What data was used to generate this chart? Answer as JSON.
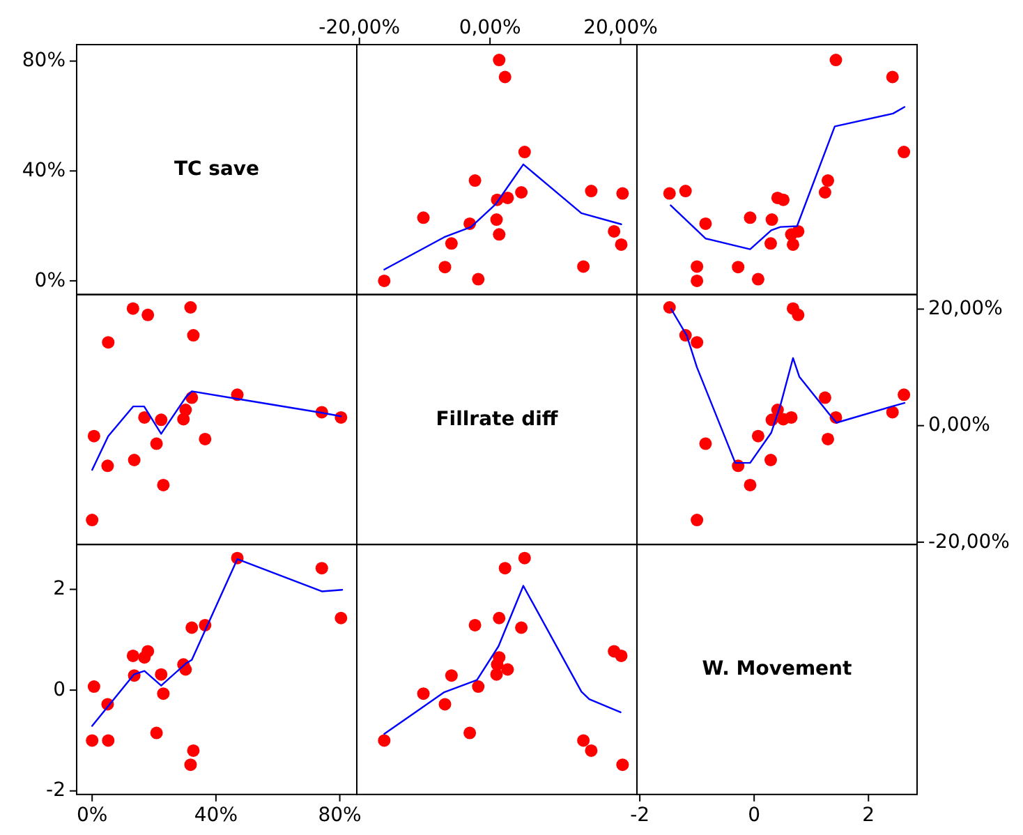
{
  "chart_data": [
    {
      "type": "scatter",
      "title": "TC save",
      "xlim": [
        -5,
        85.5
      ],
      "ylim": [
        -5,
        86
      ],
      "yticks": [
        {
          "value": 0,
          "label": "0%"
        },
        {
          "value": 40,
          "label": "40%"
        },
        {
          "value": 80,
          "label": "80%"
        }
      ],
      "tick_labels": "y"
    },
    {
      "type": "scatter",
      "x": [
        -16.2,
        -1.8,
        -6.9,
        14.3,
        20.1,
        -5.9,
        1.4,
        19,
        -3.1,
        1,
        -10.2,
        1.1,
        2.7,
        20.3,
        4.8,
        15.5,
        -2.3,
        5.3,
        2.3,
        1.4
      ],
      "xlim": [
        -20.4,
        22.5
      ],
      "xticks": [
        {
          "value": -20,
          "label": "-20,00%"
        },
        {
          "value": 0,
          "label": "0,00%"
        },
        {
          "value": 20,
          "label": "20,00%"
        }
      ],
      "ylim": [
        -5,
        86
      ],
      "tick_labels": "x",
      "series": [
        {
          "type": "scatter",
          "color": "#ff0000",
          "marker": "circle",
          "values": [
            0,
            0.6,
            5,
            5.2,
            13.2,
            13.6,
            16.9,
            18,
            20.8,
            22.3,
            23,
            29.5,
            30.2,
            31.8,
            32.2,
            32.7,
            36.5,
            46.9,
            74.2,
            80.4
          ]
        },
        {
          "type": "line",
          "color": "#0000ff",
          "marker": "none",
          "x": [
            -16.2,
            -7,
            -2.9,
            0.9,
            5.1,
            14,
            20.1
          ],
          "values": [
            4.1,
            15.9,
            19.6,
            28,
            42.4,
            24.6,
            20.6
          ]
        }
      ]
    },
    {
      "type": "scatter",
      "x": [
        -1,
        0.07,
        -0.28,
        -1,
        0.68,
        0.29,
        0.65,
        0.77,
        -0.85,
        0.31,
        -0.07,
        0.51,
        0.41,
        -1.48,
        1.24,
        -1.2,
        1.29,
        2.62,
        2.42,
        1.43
      ],
      "xlim": [
        -2.05,
        2.85
      ],
      "ylim": [
        -5,
        86
      ],
      "tick_labels": false,
      "series": [
        {
          "type": "scatter",
          "color": "#ff0000",
          "marker": "circle",
          "values": [
            0,
            0.6,
            5,
            5.2,
            13.2,
            13.6,
            16.9,
            18,
            20.8,
            22.3,
            23,
            29.5,
            30.2,
            31.8,
            32.2,
            32.7,
            36.5,
            46.9,
            74.2,
            80.4
          ]
        },
        {
          "type": "line",
          "color": "#0000ff",
          "marker": "none",
          "x": [
            -1.46,
            -0.85,
            -0.07,
            0.3,
            0.46,
            0.75,
            1.41,
            2.43,
            2.63
          ],
          "values": [
            27.5,
            15.4,
            11.5,
            18.4,
            19.6,
            19.9,
            56.2,
            60.9,
            63.3
          ]
        }
      ]
    },
    {
      "type": "scatter",
      "x": [
        0,
        0.6,
        5,
        5.2,
        13.2,
        13.6,
        16.9,
        18,
        20.8,
        22.3,
        23,
        29.5,
        30.2,
        31.8,
        32.2,
        32.7,
        36.5,
        46.9,
        74.2,
        80.4
      ],
      "xlim": [
        -5,
        85.5
      ],
      "y2lim": [
        -20.4,
        22.5
      ],
      "tick_labels": false,
      "series": [
        {
          "type": "scatter",
          "axis": "y2",
          "color": "#ff0000",
          "marker": "circle",
          "values": [
            -16.2,
            -1.8,
            -6.9,
            14.3,
            20.1,
            -5.9,
            1.4,
            19,
            -3.1,
            1,
            -10.2,
            1.1,
            2.7,
            20.3,
            4.8,
            15.5,
            -2.3,
            5.3,
            2.3,
            1.4
          ]
        },
        {
          "type": "line",
          "axis": "y2",
          "color": "#0000ff",
          "marker": "none",
          "x": [
            0,
            5.2,
            13.3,
            16.8,
            22.3,
            30.3,
            32.2,
            46.9,
            74.2,
            80.4
          ],
          "values": [
            -7.6,
            -1.8,
            3.3,
            3.3,
            -1.4,
            4.9,
            5.9,
            4.6,
            2.2,
            1.6
          ]
        }
      ]
    },
    {
      "type": "scatter",
      "title": "Fillrate diff",
      "xlim": [
        -20.4,
        22.5
      ],
      "y2lim": [
        -20.4,
        22.5
      ],
      "tick_labels": false
    },
    {
      "type": "scatter",
      "x": [
        -1,
        0.07,
        -0.28,
        -1,
        0.68,
        0.29,
        0.65,
        0.77,
        -0.85,
        0.31,
        -0.07,
        0.51,
        0.41,
        -1.48,
        1.24,
        -1.2,
        1.29,
        2.62,
        2.42,
        1.43
      ],
      "xlim": [
        -2.05,
        2.85
      ],
      "y2lim": [
        -20.4,
        22.5
      ],
      "y2ticks": [
        {
          "value": -20,
          "label": "-20,00%"
        },
        {
          "value": 0,
          "label": "0,00%"
        },
        {
          "value": 20,
          "label": "20,00%"
        }
      ],
      "tick_labels": "y",
      "series": [
        {
          "type": "scatter",
          "axis": "y2",
          "color": "#ff0000",
          "marker": "circle",
          "values": [
            -16.2,
            -1.8,
            -6.9,
            14.3,
            20.1,
            -5.9,
            1.4,
            19,
            -3.1,
            1,
            -10.2,
            1.1,
            2.7,
            20.3,
            4.8,
            15.5,
            -2.3,
            5.3,
            2.3,
            1.4
          ]
        },
        {
          "type": "line",
          "axis": "y2",
          "color": "#0000ff",
          "marker": "none",
          "x": [
            -1.45,
            -1.18,
            -1,
            -0.33,
            -0.07,
            0.3,
            0.46,
            0.68,
            0.79,
            1.32,
            1.44,
            2.41,
            2.63
          ],
          "values": [
            20,
            15.5,
            10,
            -6.4,
            -6.4,
            -1.2,
            3.5,
            11.6,
            8.4,
            1.9,
            0.5,
            3.3,
            3.9
          ]
        }
      ]
    },
    {
      "type": "scatter",
      "x": [
        0,
        0.6,
        5,
        5.2,
        13.2,
        13.6,
        16.9,
        18,
        20.8,
        22.3,
        23,
        29.5,
        30.2,
        31.8,
        32.2,
        32.7,
        36.5,
        46.9,
        74.2,
        80.4
      ],
      "xlim": [
        -5,
        85.5
      ],
      "xticks": [
        {
          "value": 0,
          "label": "0%"
        },
        {
          "value": 40,
          "label": "40%"
        },
        {
          "value": 80,
          "label": "80%"
        }
      ],
      "ylim": [
        -2.07,
        2.89
      ],
      "yticks": [
        -2,
        0,
        2
      ],
      "series": [
        {
          "type": "scatter",
          "color": "#ff0000",
          "marker": "circle",
          "values": [
            -1,
            0.07,
            -0.28,
            -1,
            0.68,
            0.29,
            0.65,
            0.77,
            -0.85,
            0.31,
            -0.07,
            0.51,
            0.41,
            -1.48,
            1.24,
            -1.2,
            1.29,
            2.62,
            2.42,
            1.43
          ]
        },
        {
          "type": "line",
          "color": "#0000ff",
          "marker": "none",
          "x": [
            0,
            13.5,
            16.9,
            22.3,
            30.3,
            32.2,
            46.9,
            74.2,
            80.8
          ],
          "values": [
            -0.71,
            0.31,
            0.38,
            0.09,
            0.53,
            0.6,
            2.6,
            1.96,
            1.99
          ]
        }
      ]
    },
    {
      "type": "scatter",
      "x": [
        -16.2,
        -1.8,
        -6.9,
        14.3,
        20.1,
        -5.9,
        1.4,
        19,
        -3.1,
        1,
        -10.2,
        1.1,
        2.7,
        20.3,
        4.8,
        15.5,
        -2.3,
        5.3,
        2.3,
        1.4
      ],
      "xlim": [
        -20.4,
        22.5
      ],
      "ylim": [
        -2.07,
        2.89
      ],
      "tick_labels": false,
      "series": [
        {
          "type": "scatter",
          "color": "#ff0000",
          "marker": "circle",
          "values": [
            -1,
            0.07,
            -0.28,
            -1,
            0.68,
            0.29,
            0.65,
            0.77,
            -0.85,
            0.31,
            -0.07,
            0.51,
            0.41,
            -1.48,
            1.24,
            -1.2,
            1.29,
            2.62,
            2.42,
            1.43
          ]
        },
        {
          "type": "line",
          "color": "#0000ff",
          "marker": "none",
          "x": [
            -16.2,
            -7,
            -2,
            1.3,
            5.1,
            14,
            15.2,
            20
          ],
          "values": [
            -0.87,
            -0.04,
            0.2,
            0.87,
            2.07,
            -0.03,
            -0.18,
            -0.44
          ]
        }
      ]
    },
    {
      "type": "scatter",
      "title": "W. Movement",
      "xlim": [
        -2.05,
        2.85
      ],
      "xticks": [
        -2,
        0,
        2
      ],
      "ylim": [
        -2.07,
        2.89
      ],
      "tick_labels": "x"
    }
  ]
}
